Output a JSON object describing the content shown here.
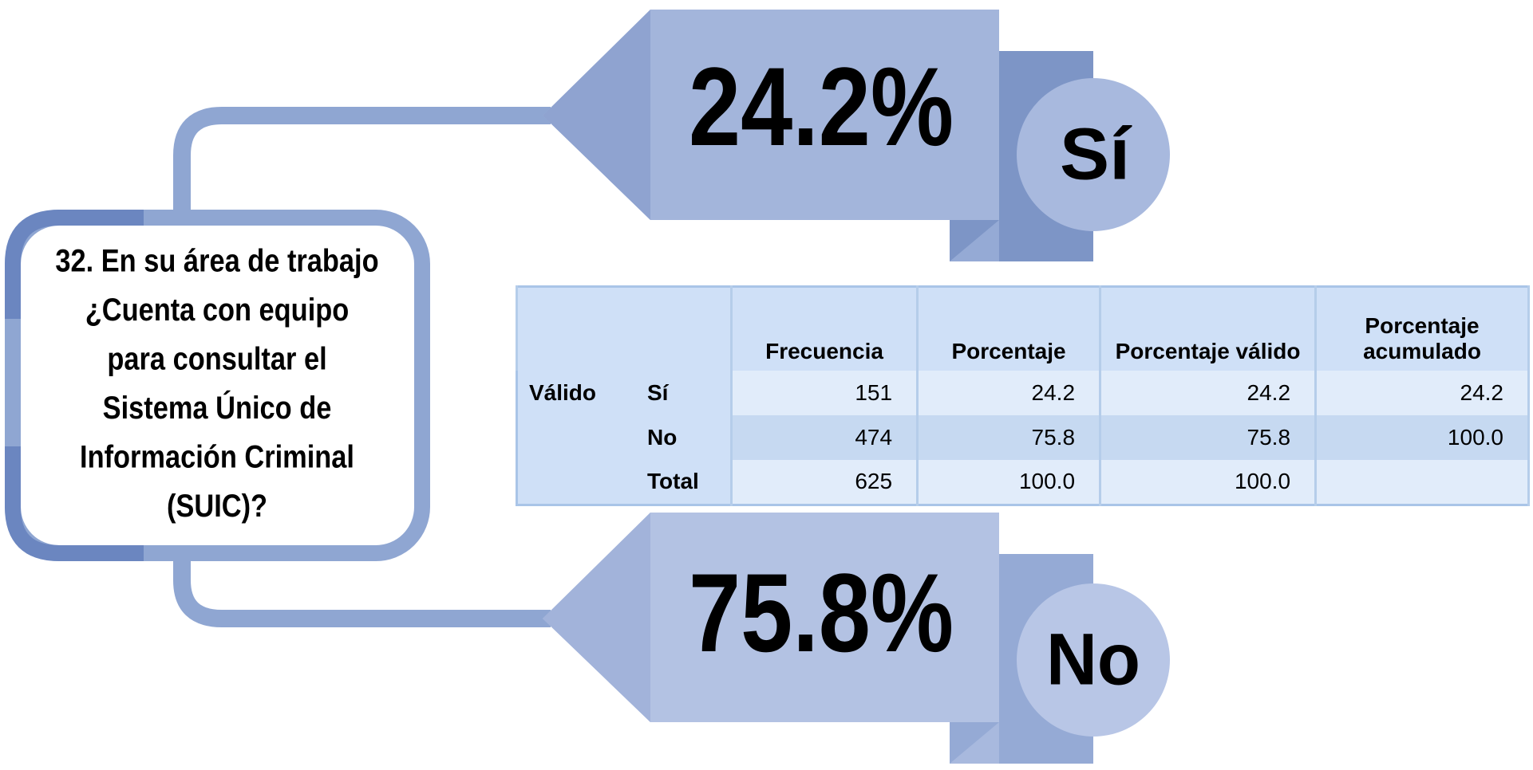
{
  "question_lines": [
    "32. En su área de trabajo",
    "¿Cuenta con equipo",
    "para consultar el",
    "Sistema Único de",
    "Información Criminal",
    "(SUIC)?"
  ],
  "callouts": [
    {
      "percent": "24.2%",
      "label": "Sí"
    },
    {
      "percent": "75.8%",
      "label": "No"
    }
  ],
  "table": {
    "headers": [
      "Frecuencia",
      "Porcentaje",
      "Porcentaje válido",
      "Porcentaje acumulado"
    ],
    "row_group": "Válido",
    "rows": [
      [
        "Sí",
        "151",
        "24.2",
        "24.2",
        "24.2"
      ],
      [
        "No",
        "474",
        "75.8",
        "75.8",
        "100.0"
      ],
      [
        "Total",
        "625",
        "100.0",
        "100.0"
      ]
    ]
  }
}
